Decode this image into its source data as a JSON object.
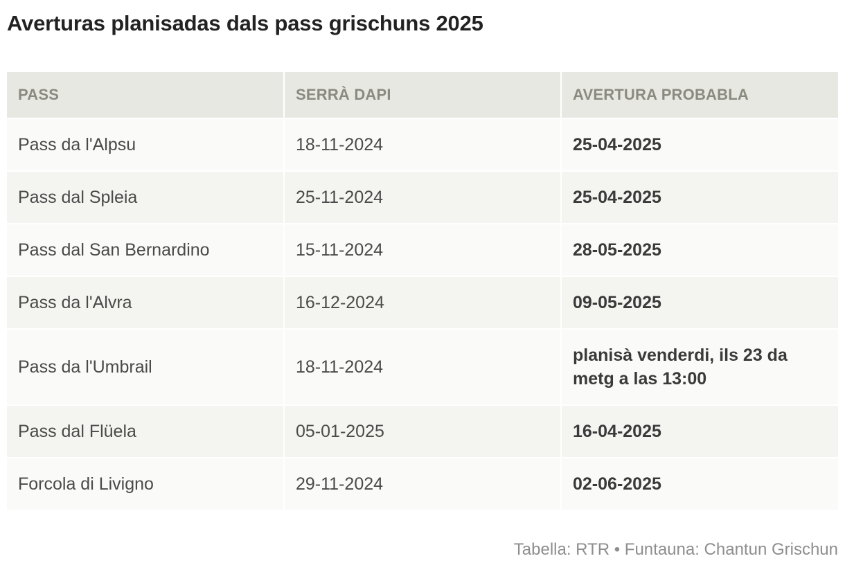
{
  "title": "Averturas planisadas dals pass grischuns 2025",
  "chart_data": {
    "type": "table",
    "title": "Averturas planisadas dals pass grischuns 2025",
    "columns": [
      "Pass",
      "Serrà dapi",
      "Avertura probabla"
    ],
    "rows": [
      [
        "Pass da l'Alpsu",
        "18-11-2024",
        "25-04-2025"
      ],
      [
        "Pass dal Spleia",
        "25-11-2024",
        "25-04-2025"
      ],
      [
        "Pass dal San Bernardino",
        "15-11-2024",
        "28-05-2025"
      ],
      [
        "Pass da l'Alvra",
        "16-12-2024",
        "09-05-2025"
      ],
      [
        "Pass da l'Umbrail",
        "18-11-2024",
        "planisà venderdi, ils 23 da metg a las 13:00"
      ],
      [
        "Pass dal Flüela",
        "05-01-2025",
        "16-04-2025"
      ],
      [
        "Forcola di Livigno",
        "29-11-2024",
        "02-06-2025"
      ]
    ]
  },
  "footer": "Tabella: RTR • Funtauna: Chantun Grischun"
}
